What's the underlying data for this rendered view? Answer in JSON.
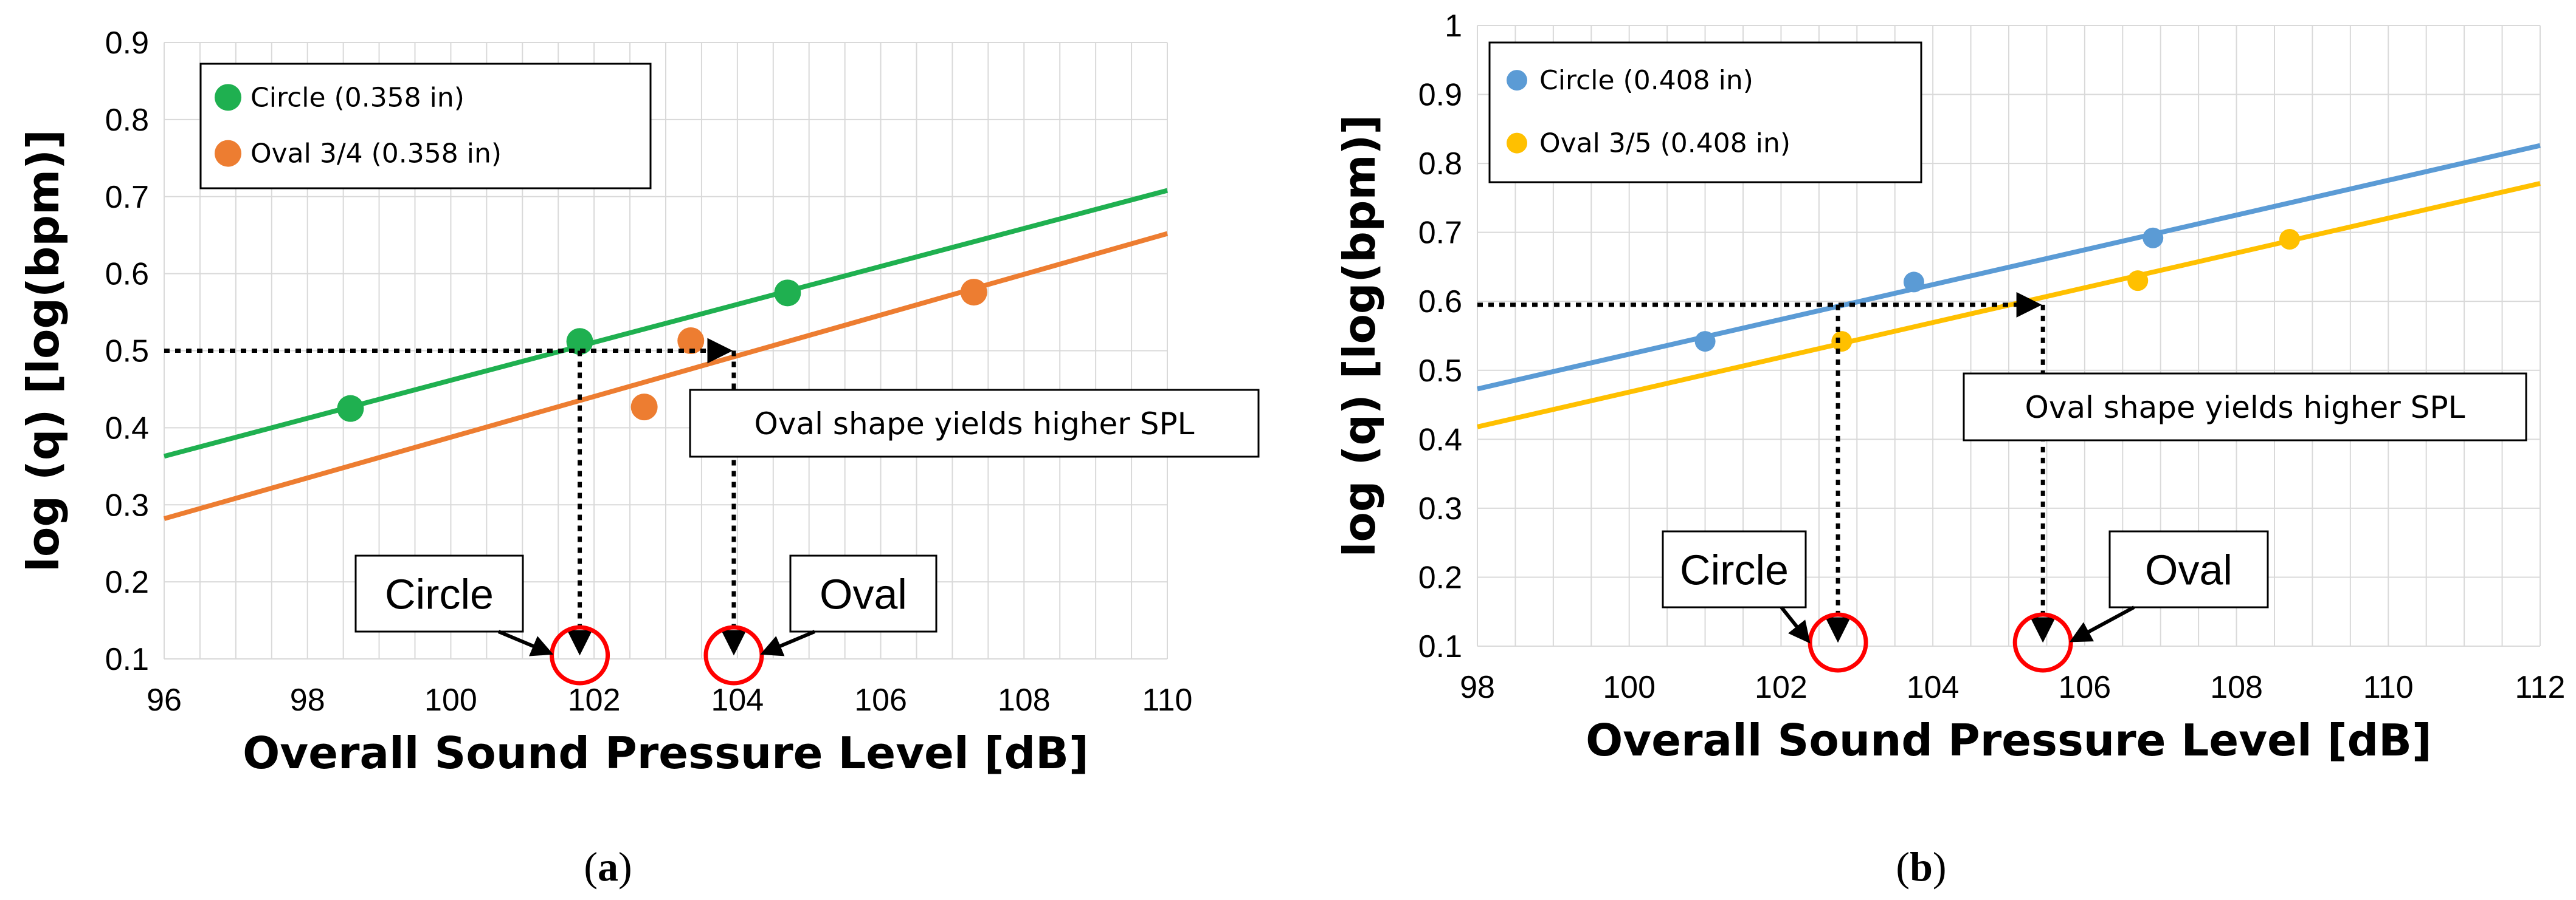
{
  "chart_data": [
    {
      "type": "scatter",
      "caption_letter": "a",
      "xlabel": "Overall Sound Pressure Level [dB]",
      "ylabel": "log (q) [log(bpm)]",
      "xlim": [
        96,
        110
      ],
      "ylim": [
        0.1,
        0.9
      ],
      "xticks": [
        96,
        98,
        100,
        102,
        104,
        106,
        108,
        110
      ],
      "yticks": [
        0.1,
        0.2,
        0.3,
        0.4,
        0.5,
        0.6,
        0.7,
        0.8,
        0.9
      ],
      "grid": true,
      "legend_position": "top-left",
      "series": [
        {
          "name": "Circle (0.358 in)",
          "color": "#1fb050",
          "points": [
            [
              98.6,
              0.425
            ],
            [
              101.8,
              0.512
            ],
            [
              104.7,
              0.575
            ]
          ],
          "trendline": [
            [
              96,
              0.363
            ],
            [
              110,
              0.708
            ]
          ]
        },
        {
          "name": "Oval 3/4 (0.358 in)",
          "color": "#ed7d31",
          "points": [
            [
              102.7,
              0.427
            ],
            [
              103.35,
              0.513
            ],
            [
              107.3,
              0.576
            ]
          ],
          "trendline": [
            [
              96,
              0.282
            ],
            [
              110,
              0.652
            ]
          ]
        }
      ],
      "annotations": {
        "note": "Oval shape yields higher SPL",
        "circle_label": "Circle",
        "oval_label": "Oval",
        "reference_y": 0.5,
        "circle_x": 101.8,
        "oval_x": 103.95
      }
    },
    {
      "type": "scatter",
      "caption_letter": "b",
      "xlabel": "Overall Sound Pressure Level [dB]",
      "ylabel": "log (q) [log(bpm)]",
      "xlim": [
        98,
        112
      ],
      "ylim": [
        0.1,
        1.0
      ],
      "xticks": [
        98,
        100,
        102,
        104,
        106,
        108,
        110,
        112
      ],
      "yticks": [
        0.1,
        0.2,
        0.3,
        0.4,
        0.5,
        0.6,
        0.7,
        0.8,
        0.9,
        1
      ],
      "grid": true,
      "legend_position": "top-left",
      "series": [
        {
          "name": "Circle (0.408 in)",
          "color": "#5b9bd5",
          "points": [
            [
              101.0,
              0.542
            ],
            [
              103.75,
              0.628
            ],
            [
              106.9,
              0.692
            ]
          ],
          "trendline": [
            [
              98,
              0.473
            ],
            [
              112,
              0.826
            ]
          ]
        },
        {
          "name": "Oval 3/5 (0.408 in)",
          "color": "#ffc000",
          "points": [
            [
              102.8,
              0.542
            ],
            [
              106.7,
              0.63
            ],
            [
              108.7,
              0.69
            ]
          ],
          "trendline": [
            [
              98,
              0.418
            ],
            [
              112,
              0.771
            ]
          ]
        }
      ],
      "annotations": {
        "note": "Oval shape yields higher SPL",
        "circle_label": "Circle",
        "oval_label": "Oval",
        "reference_y": 0.595,
        "circle_x": 102.75,
        "oval_x": 105.45
      }
    }
  ]
}
